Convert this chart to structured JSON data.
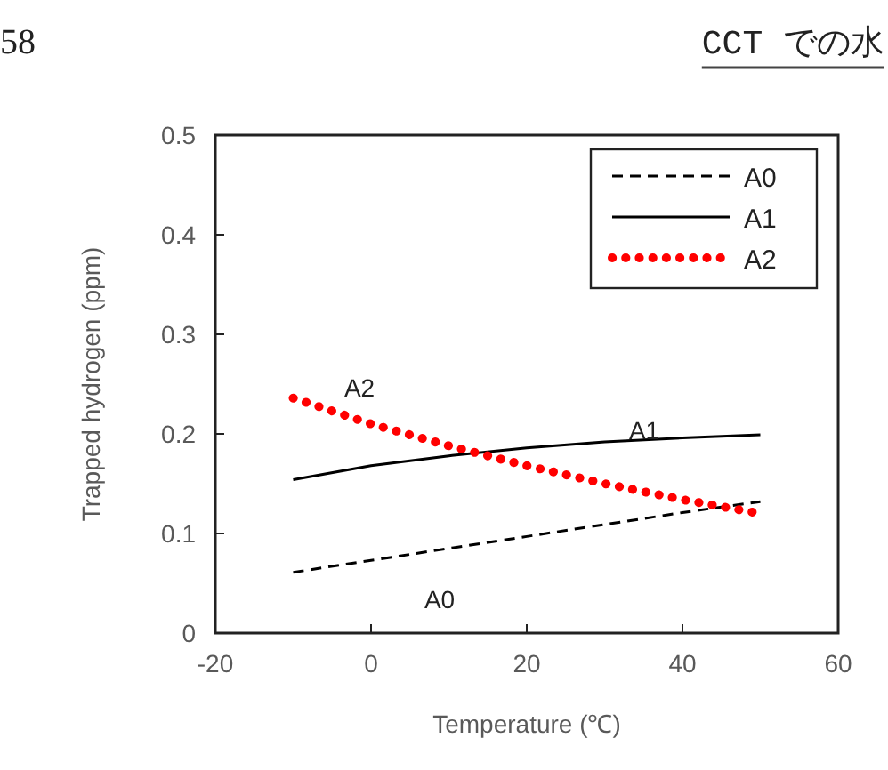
{
  "chart_data": {
    "type": "line",
    "xlabel": "Temperature (℃)",
    "ylabel": "Trapped hydrogen (ppm)",
    "x": [
      -10,
      0,
      10,
      20,
      30,
      40,
      50
    ],
    "xlim": [
      -20,
      60
    ],
    "xticks": [
      -20,
      0,
      20,
      40,
      60
    ],
    "ylim": [
      0,
      0.5
    ],
    "yticks": [
      0,
      0.1,
      0.2,
      0.3,
      0.4,
      0.5
    ],
    "grid": false,
    "legend": "top right",
    "series": [
      {
        "name": "A0",
        "color": "#000000",
        "line_style": "dashed",
        "values": [
          0.061,
          0.073,
          0.085,
          0.097,
          0.109,
          0.121,
          0.132
        ]
      },
      {
        "name": "A1",
        "color": "#000000",
        "line_style": "solid",
        "values": [
          0.154,
          0.168,
          0.178,
          0.186,
          0.192,
          0.196,
          0.199
        ]
      },
      {
        "name": "A2",
        "color": "#ff0000",
        "line_style": "dotted",
        "values": [
          0.236,
          0.21,
          0.188,
          0.168,
          0.15,
          0.134,
          0.12
        ]
      }
    ],
    "annotations": [
      "A2",
      "A1",
      "A0",
      "58",
      "CCT での水"
    ]
  }
}
